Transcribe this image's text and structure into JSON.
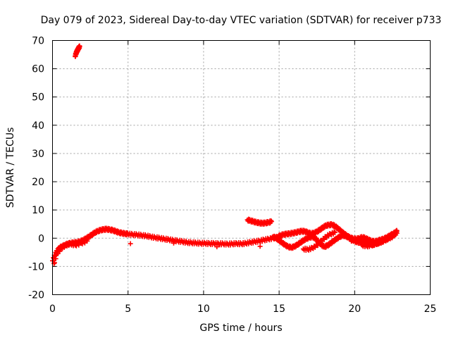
{
  "chart_data": {
    "type": "scatter",
    "title": "Day 079 of 2023, Sidereal Day-to-day VTEC variation (SDTVAR) for receiver p733",
    "xlabel": "GPS time / hours",
    "ylabel": "SDTVAR / TECUs",
    "xlim": [
      0,
      25
    ],
    "ylim": [
      -20,
      70
    ],
    "xticks": [
      "0",
      "5",
      "10",
      "15",
      "20",
      "25"
    ],
    "yticks": [
      "-20",
      "-10",
      "0",
      "10",
      "20",
      "30",
      "40",
      "50",
      "60",
      "70"
    ],
    "grid": true,
    "marker": "plus",
    "color": "#ff0000",
    "series": [
      {
        "name": "main-band",
        "x": [
          0.0,
          0.15,
          0.3,
          0.45,
          0.6,
          0.8,
          1.0,
          1.2,
          1.4,
          1.6,
          1.8,
          2.0,
          2.2,
          2.4,
          2.6,
          2.8,
          3.0,
          3.2,
          3.4,
          3.6,
          3.8,
          4.0,
          4.2,
          4.4,
          4.6,
          4.8,
          5.0,
          5.3,
          5.6,
          5.9,
          6.2,
          6.5,
          6.8,
          7.1,
          7.4,
          7.7,
          8.0,
          8.3,
          8.6,
          8.9,
          9.2,
          9.5,
          9.8,
          10.1,
          10.4,
          10.7,
          11.0,
          11.3,
          11.6,
          11.9,
          12.2,
          12.5,
          12.8,
          13.1,
          13.4,
          13.7,
          14.0,
          14.3,
          14.6,
          14.9
        ],
        "y": [
          -8.0,
          -6.0,
          -4.5,
          -3.5,
          -3.0,
          -2.5,
          -2.0,
          -1.8,
          -1.6,
          -1.5,
          -1.2,
          -0.8,
          -0.2,
          0.5,
          1.2,
          2.0,
          2.5,
          2.9,
          3.1,
          3.2,
          3.0,
          2.8,
          2.4,
          2.0,
          1.8,
          1.6,
          1.5,
          1.3,
          1.2,
          1.0,
          0.8,
          0.5,
          0.2,
          0.0,
          -0.3,
          -0.5,
          -0.8,
          -1.0,
          -1.2,
          -1.5,
          -1.6,
          -1.7,
          -1.8,
          -1.8,
          -1.9,
          -1.9,
          -2.0,
          -2.0,
          -2.1,
          -2.0,
          -1.9,
          -2.0,
          -1.8,
          -1.5,
          -1.2,
          -1.0,
          -0.6,
          -0.3,
          0.0,
          0.4
        ]
      },
      {
        "name": "early-spike",
        "x": [
          1.5,
          1.55,
          1.6,
          1.65,
          1.7,
          1.75,
          1.8
        ],
        "y": [
          64.5,
          65.3,
          66.0,
          66.5,
          67.0,
          67.5,
          67.8
        ]
      },
      {
        "name": "isolated-arc",
        "x": [
          12.9,
          13.1,
          13.3,
          13.5,
          13.7,
          13.9,
          14.1,
          14.3,
          14.5
        ],
        "y": [
          6.5,
          6.2,
          5.9,
          5.6,
          5.4,
          5.3,
          5.4,
          5.6,
          5.9
        ]
      },
      {
        "name": "upper-branch",
        "x": [
          14.9,
          15.1,
          15.3,
          15.5,
          15.7,
          15.9,
          16.1,
          16.3,
          16.5,
          16.7,
          16.9,
          17.1,
          17.3,
          17.5,
          17.7,
          17.9,
          18.1,
          18.3,
          18.5,
          18.7,
          18.9,
          19.1,
          19.3,
          19.5,
          19.7,
          19.9,
          20.1,
          20.3,
          20.5,
          20.7,
          20.9,
          21.1,
          21.3,
          21.5,
          21.7,
          21.9,
          22.1,
          22.3,
          22.5,
          22.7,
          22.8
        ],
        "y": [
          0.5,
          1.0,
          1.3,
          1.5,
          1.6,
          1.8,
          2.0,
          2.3,
          2.5,
          2.4,
          2.0,
          1.6,
          1.8,
          2.3,
          3.0,
          3.8,
          4.5,
          4.7,
          4.8,
          4.3,
          3.4,
          2.5,
          1.6,
          0.8,
          0.2,
          -0.2,
          -0.3,
          -0.1,
          0.3,
          0.0,
          -0.5,
          -1.0,
          -1.2,
          -1.0,
          -0.6,
          -0.3,
          0.2,
          0.8,
          1.5,
          2.0,
          2.5
        ]
      },
      {
        "name": "lower-branch",
        "x": [
          14.6,
          14.8,
          15.0,
          15.2,
          15.4,
          15.6,
          15.8,
          16.0,
          16.2,
          16.4,
          16.6,
          16.8,
          17.0,
          17.2,
          17.4,
          17.6,
          17.8,
          18.0,
          18.2,
          18.4,
          18.6,
          18.8,
          19.0,
          19.2,
          19.4,
          19.6,
          19.8,
          20.0,
          20.2,
          20.4,
          20.6,
          20.8,
          21.0,
          21.2,
          21.4,
          21.6,
          21.8,
          22.0,
          22.2,
          22.4,
          22.6,
          22.8
        ],
        "y": [
          0.6,
          0.0,
          -0.8,
          -1.6,
          -2.4,
          -3.0,
          -3.3,
          -3.0,
          -2.3,
          -1.6,
          -0.8,
          -0.2,
          0.3,
          0.5,
          0.0,
          -1.2,
          -2.4,
          -3.0,
          -2.6,
          -1.8,
          -1.0,
          -0.2,
          0.5,
          1.0,
          0.8,
          0.2,
          -0.4,
          -1.0,
          -1.4,
          -1.5,
          -1.3,
          -1.6,
          -2.0,
          -2.3,
          -2.0,
          -1.6,
          -1.2,
          -0.6,
          -0.1,
          0.5,
          1.2,
          1.8
        ]
      },
      {
        "name": "secondary-streaks",
        "x": [
          0.1,
          0.3,
          0.6,
          0.9,
          1.2,
          1.5,
          1.9,
          2.3,
          16.6,
          16.9,
          17.2,
          17.5,
          17.8,
          18.1,
          18.4,
          18.7,
          20.5,
          20.8,
          21.1,
          21.4,
          21.7,
          22.0,
          22.3,
          22.6
        ],
        "y": [
          -9.0,
          -5.5,
          -3.5,
          -2.5,
          -2.0,
          -2.5,
          -1.8,
          -1.0,
          -3.8,
          -4.0,
          -3.5,
          -2.5,
          -1.0,
          0.5,
          1.5,
          2.0,
          -2.5,
          -2.8,
          -2.5,
          -2.0,
          -1.5,
          -0.8,
          0.0,
          0.8
        ]
      }
    ]
  }
}
